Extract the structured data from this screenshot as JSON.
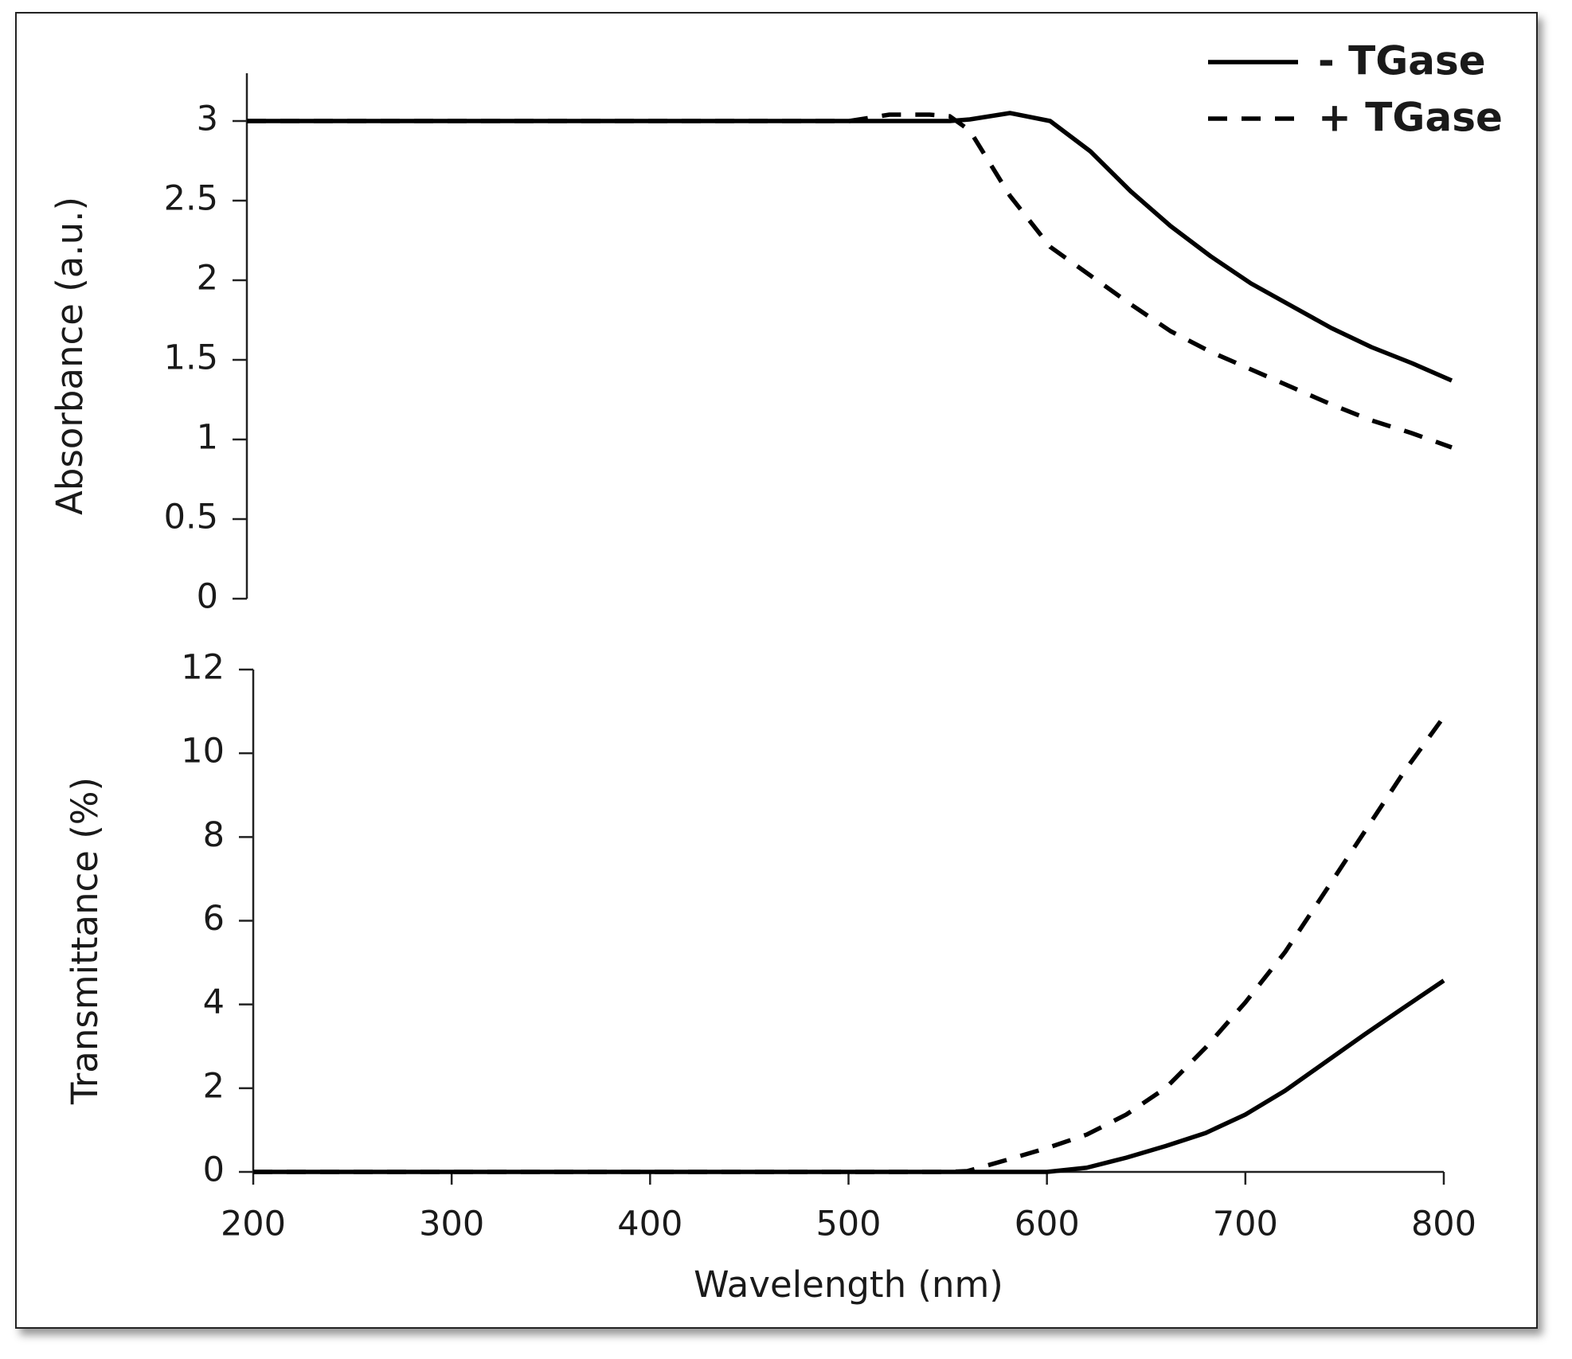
{
  "chart_data": [
    {
      "type": "line",
      "ylabel": "Absorbance (a.u.)",
      "x": [
        200,
        300,
        400,
        500,
        520,
        540,
        550,
        560,
        580,
        600,
        620,
        640,
        660,
        680,
        700,
        720,
        740,
        760,
        780,
        800
      ],
      "xlim": [
        200,
        800
      ],
      "ylim": [
        0,
        3.3
      ],
      "yticks": [
        0,
        0.5,
        1,
        1.5,
        2,
        2.5,
        3
      ],
      "legend": "upper right",
      "series": [
        {
          "name": "- TGase",
          "color": "#000000",
          "dashed": false,
          "values": [
            3,
            3,
            3,
            3,
            3,
            3,
            3,
            3.01,
            3.05,
            3.0,
            2.81,
            2.56,
            2.34,
            2.15,
            1.98,
            1.84,
            1.7,
            1.58,
            1.48,
            1.37
          ]
        },
        {
          "name": "+ TGase",
          "color": "#000000",
          "dashed": true,
          "values": [
            3,
            3,
            3,
            3,
            3.04,
            3.04,
            3.03,
            2.94,
            2.53,
            2.21,
            2.03,
            1.85,
            1.68,
            1.55,
            1.44,
            1.33,
            1.22,
            1.12,
            1.04,
            0.95
          ]
        }
      ]
    },
    {
      "type": "line",
      "xlabel": "Wavelength (nm)",
      "ylabel": "Transmittance  (%)",
      "x": [
        200,
        300,
        400,
        500,
        520,
        540,
        550,
        560,
        580,
        600,
        620,
        640,
        660,
        680,
        700,
        720,
        740,
        760,
        780,
        800
      ],
      "xlim": [
        200,
        800
      ],
      "xticks": [
        200,
        300,
        400,
        500,
        600,
        700,
        800
      ],
      "ylim": [
        0,
        12
      ],
      "yticks": [
        0,
        2,
        4,
        6,
        8,
        10,
        12
      ],
      "series": [
        {
          "color": "#000000",
          "dashed": false,
          "values": [
            0,
            0,
            0,
            0,
            0,
            0,
            0,
            0,
            0,
            0,
            0.1,
            0.34,
            0.62,
            0.93,
            1.37,
            1.94,
            2.61,
            3.28,
            3.93,
            4.57
          ]
        },
        {
          "color": "#000000",
          "dashed": true,
          "values": [
            0,
            0,
            0,
            0,
            0,
            0,
            0,
            0.02,
            0.29,
            0.57,
            0.89,
            1.37,
            2.01,
            2.97,
            4.05,
            5.25,
            6.68,
            8.12,
            9.56,
            10.87
          ]
        }
      ]
    }
  ]
}
